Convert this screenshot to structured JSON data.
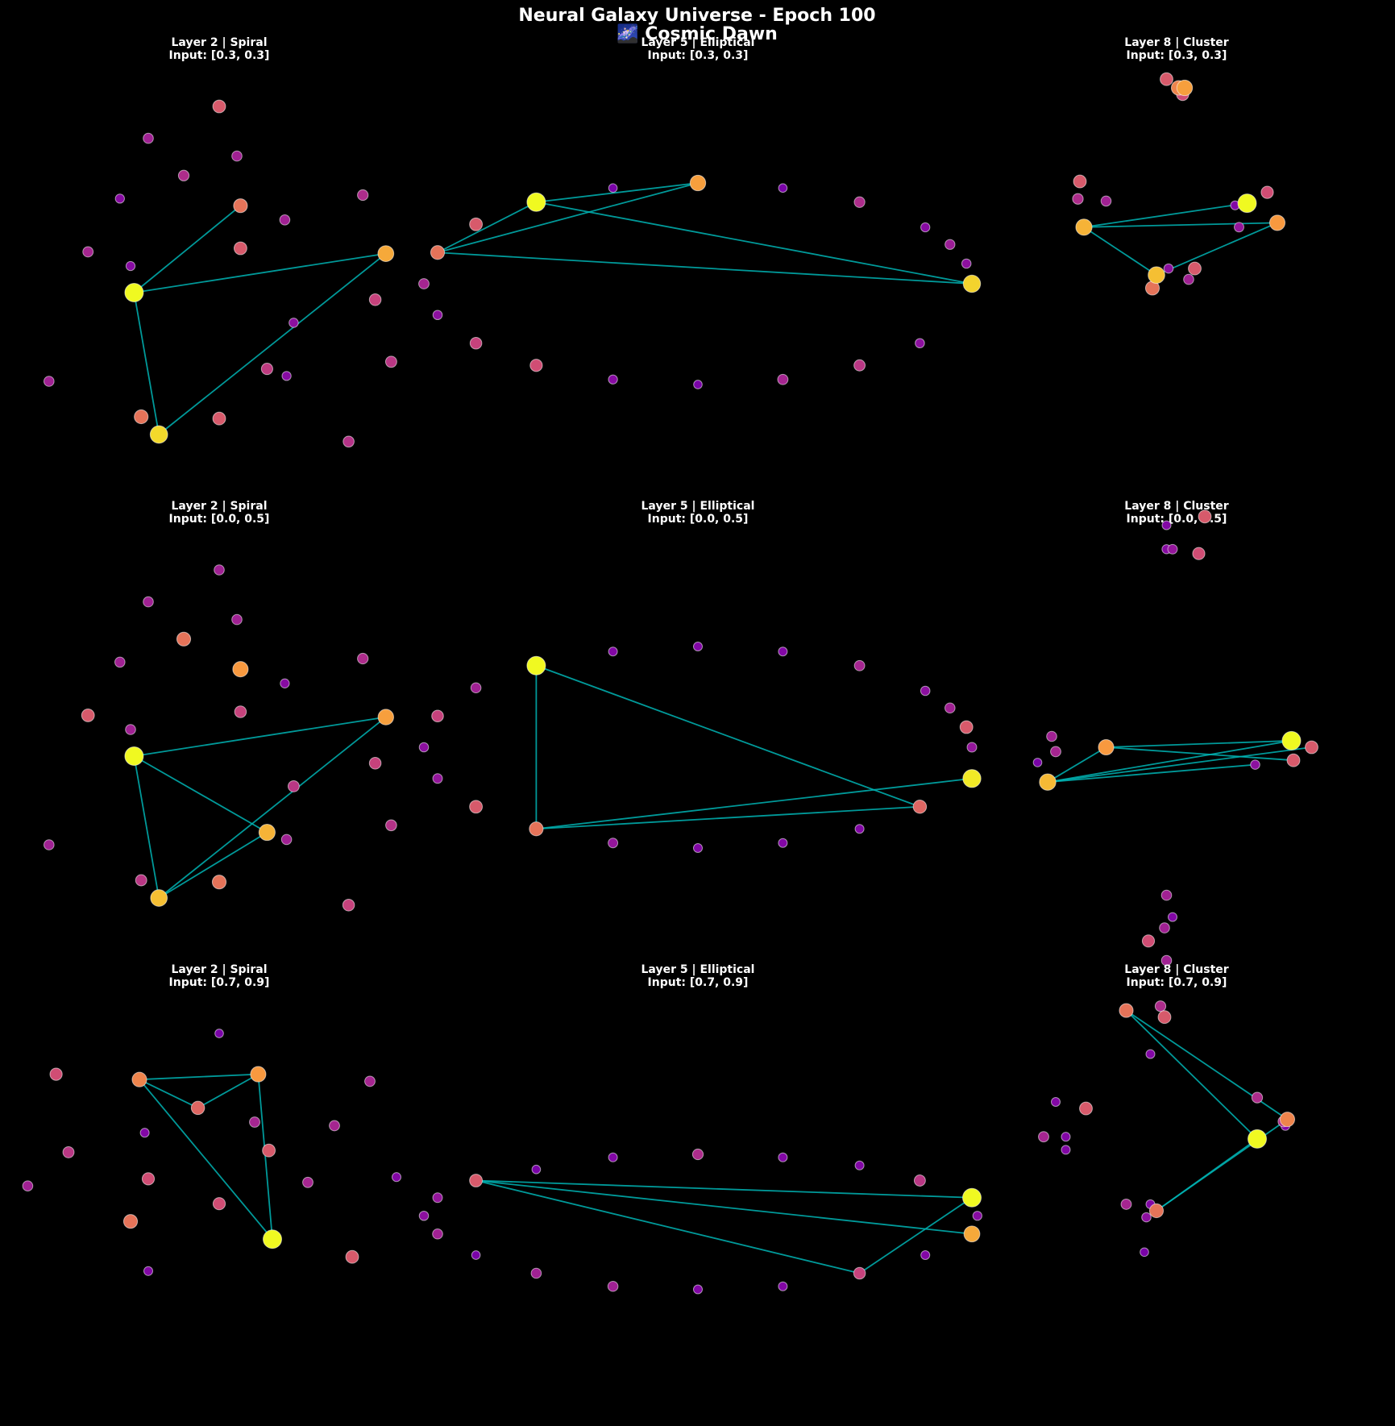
{
  "figure": {
    "title_line1": "Neural Galaxy Universe - Epoch 100",
    "title_line2": "🌌 Cosmic Dawn",
    "background": "#000000",
    "edge_color": "#00b4b4"
  },
  "chart_data": [
    {
      "type": "scatter",
      "title_line1": "Layer 2 | Spiral",
      "title_line2": "Input: [0.3, 0.3]",
      "nodes": [
        {
          "x": 0.0,
          "y": 1.0,
          "a": 0.45
        },
        {
          "x": -0.4,
          "y": 0.82,
          "a": 0.2
        },
        {
          "x": 0.1,
          "y": 0.72,
          "a": 0.2
        },
        {
          "x": -0.2,
          "y": 0.61,
          "a": 0.25
        },
        {
          "x": 0.12,
          "y": 0.44,
          "a": 0.55
        },
        {
          "x": -0.56,
          "y": 0.48,
          "a": 0.1
        },
        {
          "x": -0.74,
          "y": 0.18,
          "a": 0.22
        },
        {
          "x": 0.37,
          "y": 0.36,
          "a": 0.2
        },
        {
          "x": -0.5,
          "y": 0.1,
          "a": 0.1
        },
        {
          "x": -0.48,
          "y": -0.05,
          "a": 1.0
        },
        {
          "x": -0.96,
          "y": -0.55,
          "a": 0.2
        },
        {
          "x": -0.44,
          "y": -0.75,
          "a": 0.55
        },
        {
          "x": 0.12,
          "y": 0.2,
          "a": 0.45
        },
        {
          "x": 0.27,
          "y": -0.48,
          "a": 0.32
        },
        {
          "x": 0.0,
          "y": -0.76,
          "a": 0.45
        },
        {
          "x": 0.42,
          "y": -0.22,
          "a": 0.12
        },
        {
          "x": -0.34,
          "y": -0.85,
          "a": 0.9
        },
        {
          "x": 0.38,
          "y": -0.52,
          "a": 0.1
        },
        {
          "x": 0.88,
          "y": -0.09,
          "a": 0.35
        },
        {
          "x": 0.81,
          "y": 0.5,
          "a": 0.25
        },
        {
          "x": 0.97,
          "y": -0.44,
          "a": 0.3
        },
        {
          "x": 0.73,
          "y": -0.89,
          "a": 0.28
        },
        {
          "x": 0.94,
          "y": 0.17,
          "a": 0.75
        }
      ],
      "edges": [
        [
          9,
          22
        ],
        [
          9,
          4
        ],
        [
          22,
          16
        ],
        [
          9,
          16
        ]
      ]
    },
    {
      "type": "scatter",
      "title_line1": "Layer 5 | Elliptical",
      "title_line2": "Input: [0.3, 0.3]",
      "nodes": [
        {
          "x": 1.0,
          "y": 0.0,
          "a": 0.88
        },
        {
          "x": 0.98,
          "y": 0.2,
          "a": 0.12
        },
        {
          "x": 0.92,
          "y": 0.39,
          "a": 0.18
        },
        {
          "x": 0.83,
          "y": 0.56,
          "a": 0.1
        },
        {
          "x": 0.59,
          "y": 0.81,
          "a": 0.25
        },
        {
          "x": 0.31,
          "y": 0.95,
          "a": 0.05
        },
        {
          "x": 0.0,
          "y": 1.0,
          "a": 0.72
        },
        {
          "x": -0.31,
          "y": 0.95,
          "a": 0.05
        },
        {
          "x": -0.59,
          "y": 0.81,
          "a": 1.0
        },
        {
          "x": -0.81,
          "y": 0.59,
          "a": 0.45
        },
        {
          "x": -0.95,
          "y": 0.31,
          "a": 0.55
        },
        {
          "x": -1.0,
          "y": 0.0,
          "a": 0.22
        },
        {
          "x": -0.95,
          "y": -0.31,
          "a": 0.12
        },
        {
          "x": -0.81,
          "y": -0.59,
          "a": 0.35
        },
        {
          "x": -0.59,
          "y": -0.81,
          "a": 0.4
        },
        {
          "x": -0.31,
          "y": -0.95,
          "a": 0.1
        },
        {
          "x": 0.0,
          "y": -1.0,
          "a": 0.05
        },
        {
          "x": 0.31,
          "y": -0.95,
          "a": 0.22
        },
        {
          "x": 0.59,
          "y": -0.81,
          "a": 0.3
        },
        {
          "x": 0.81,
          "y": -0.59,
          "a": 0.12
        }
      ],
      "edges": [
        [
          8,
          6
        ],
        [
          8,
          10
        ],
        [
          10,
          6
        ],
        [
          8,
          0
        ],
        [
          10,
          0
        ]
      ]
    },
    {
      "type": "scatter",
      "title_line1": "Layer 8 | Cluster",
      "title_line2": "Input: [0.3, 0.3]",
      "nodes": [
        {
          "x": -0.05,
          "y": 0.94,
          "a": 0.45
        },
        {
          "x": 0.04,
          "y": 0.9,
          "a": 0.72
        },
        {
          "x": 0.01,
          "y": 0.9,
          "a": 0.62
        },
        {
          "x": 0.03,
          "y": 0.87,
          "a": 0.4
        },
        {
          "x": -0.48,
          "y": 0.47,
          "a": 0.45
        },
        {
          "x": -0.49,
          "y": 0.39,
          "a": 0.25
        },
        {
          "x": -0.35,
          "y": 0.38,
          "a": 0.2
        },
        {
          "x": -0.46,
          "y": 0.26,
          "a": 0.78
        },
        {
          "x": 0.45,
          "y": 0.42,
          "a": 0.4
        },
        {
          "x": 0.35,
          "y": 0.37,
          "a": 1.0
        },
        {
          "x": 0.29,
          "y": 0.36,
          "a": 0.08
        },
        {
          "x": 0.5,
          "y": 0.28,
          "a": 0.7
        },
        {
          "x": 0.31,
          "y": 0.26,
          "a": 0.15
        },
        {
          "x": -0.1,
          "y": 0.04,
          "a": 0.82
        },
        {
          "x": -0.04,
          "y": 0.07,
          "a": 0.12
        },
        {
          "x": 0.09,
          "y": 0.07,
          "a": 0.45
        },
        {
          "x": 0.06,
          "y": 0.02,
          "a": 0.2
        },
        {
          "x": -0.12,
          "y": -0.02,
          "a": 0.55
        }
      ],
      "edges": [
        [
          7,
          9
        ],
        [
          7,
          11
        ],
        [
          7,
          13
        ],
        [
          13,
          11
        ]
      ]
    },
    {
      "type": "scatter",
      "title_line1": "Layer 2 | Spiral",
      "title_line2": "Input: [0.0, 0.5]",
      "nodes": [
        {
          "x": 0.0,
          "y": 1.0,
          "a": 0.2
        },
        {
          "x": -0.4,
          "y": 0.82,
          "a": 0.2
        },
        {
          "x": 0.1,
          "y": 0.72,
          "a": 0.2
        },
        {
          "x": -0.2,
          "y": 0.61,
          "a": 0.55
        },
        {
          "x": 0.12,
          "y": 0.44,
          "a": 0.7
        },
        {
          "x": -0.56,
          "y": 0.48,
          "a": 0.2
        },
        {
          "x": -0.74,
          "y": 0.18,
          "a": 0.45
        },
        {
          "x": 0.37,
          "y": 0.36,
          "a": 0.1
        },
        {
          "x": -0.5,
          "y": 0.1,
          "a": 0.2
        },
        {
          "x": -0.48,
          "y": -0.05,
          "a": 1.0
        },
        {
          "x": -0.96,
          "y": -0.55,
          "a": 0.2
        },
        {
          "x": -0.44,
          "y": -0.75,
          "a": 0.3
        },
        {
          "x": 0.12,
          "y": 0.2,
          "a": 0.35
        },
        {
          "x": 0.27,
          "y": -0.48,
          "a": 0.78
        },
        {
          "x": 0.0,
          "y": -0.76,
          "a": 0.55
        },
        {
          "x": 0.42,
          "y": -0.22,
          "a": 0.3
        },
        {
          "x": -0.34,
          "y": -0.85,
          "a": 0.82
        },
        {
          "x": 0.38,
          "y": -0.52,
          "a": 0.2
        },
        {
          "x": 0.88,
          "y": -0.09,
          "a": 0.35
        },
        {
          "x": 0.81,
          "y": 0.5,
          "a": 0.25
        },
        {
          "x": 0.97,
          "y": -0.44,
          "a": 0.28
        },
        {
          "x": 0.73,
          "y": -0.89,
          "a": 0.35
        },
        {
          "x": 0.94,
          "y": 0.17,
          "a": 0.72
        }
      ],
      "edges": [
        [
          9,
          22
        ],
        [
          9,
          13
        ],
        [
          22,
          16
        ],
        [
          9,
          16
        ],
        [
          16,
          13
        ]
      ]
    },
    {
      "type": "scatter",
      "title_line1": "Layer 5 | Elliptical",
      "title_line2": "Input: [0.0, 0.5]",
      "nodes": [
        {
          "x": 1.0,
          "y": 0.0,
          "a": 0.15
        },
        {
          "x": 0.98,
          "y": 0.2,
          "a": 0.45
        },
        {
          "x": 0.92,
          "y": 0.39,
          "a": 0.2
        },
        {
          "x": 0.83,
          "y": 0.56,
          "a": 0.12
        },
        {
          "x": 0.59,
          "y": 0.81,
          "a": 0.22
        },
        {
          "x": 0.31,
          "y": 0.95,
          "a": 0.08
        },
        {
          "x": 0.0,
          "y": 1.0,
          "a": 0.08
        },
        {
          "x": -0.31,
          "y": 0.95,
          "a": 0.08
        },
        {
          "x": -0.59,
          "y": 0.81,
          "a": 1.0
        },
        {
          "x": -0.81,
          "y": 0.59,
          "a": 0.2
        },
        {
          "x": -0.95,
          "y": 0.31,
          "a": 0.35
        },
        {
          "x": -1.0,
          "y": 0.0,
          "a": 0.12
        },
        {
          "x": -0.95,
          "y": -0.31,
          "a": 0.15
        },
        {
          "x": -0.81,
          "y": -0.59,
          "a": 0.45
        },
        {
          "x": -0.59,
          "y": -0.81,
          "a": 0.55
        },
        {
          "x": -0.31,
          "y": -0.95,
          "a": 0.15
        },
        {
          "x": 0.0,
          "y": -1.0,
          "a": 0.08
        },
        {
          "x": 0.31,
          "y": -0.95,
          "a": 0.08
        },
        {
          "x": 0.59,
          "y": -0.81,
          "a": 0.08
        },
        {
          "x": 0.81,
          "y": -0.59,
          "a": 0.5
        },
        {
          "x": 1.0,
          "y": -0.31,
          "a": 0.95
        }
      ],
      "edges": [
        [
          8,
          14
        ],
        [
          8,
          19
        ],
        [
          14,
          20
        ],
        [
          14,
          19
        ]
      ]
    },
    {
      "type": "scatter",
      "title_line1": "Layer 8 | Cluster",
      "title_line2": "Input: [0.0, 0.5]",
      "nodes": [
        {
          "x": -0.05,
          "y": 1.02,
          "a": 0.08
        },
        {
          "x": 0.14,
          "y": 1.06,
          "a": 0.45
        },
        {
          "x": -0.05,
          "y": 0.91,
          "a": 0.1
        },
        {
          "x": -0.02,
          "y": 0.91,
          "a": 0.15
        },
        {
          "x": 0.11,
          "y": 0.89,
          "a": 0.4
        },
        {
          "x": -0.62,
          "y": 0.05,
          "a": 0.2
        },
        {
          "x": -0.6,
          "y": -0.02,
          "a": 0.22
        },
        {
          "x": -0.69,
          "y": -0.07,
          "a": 0.05
        },
        {
          "x": -0.35,
          "y": 0.0,
          "a": 0.7
        },
        {
          "x": -0.64,
          "y": -0.16,
          "a": 0.8
        },
        {
          "x": 0.57,
          "y": 0.03,
          "a": 1.0
        },
        {
          "x": 0.67,
          "y": 0.0,
          "a": 0.45
        },
        {
          "x": 0.58,
          "y": -0.06,
          "a": 0.45
        },
        {
          "x": 0.39,
          "y": -0.08,
          "a": 0.12
        },
        {
          "x": -0.05,
          "y": -0.68,
          "a": 0.2
        },
        {
          "x": -0.02,
          "y": -0.78,
          "a": 0.08
        },
        {
          "x": -0.06,
          "y": -0.83,
          "a": 0.2
        },
        {
          "x": -0.14,
          "y": -0.89,
          "a": 0.4
        },
        {
          "x": -0.05,
          "y": -0.98,
          "a": 0.2
        }
      ],
      "edges": [
        [
          8,
          10
        ],
        [
          9,
          10
        ],
        [
          9,
          8
        ],
        [
          9,
          11
        ],
        [
          8,
          12
        ],
        [
          9,
          13
        ]
      ]
    },
    {
      "type": "scatter",
      "title_line1": "Layer 2 | Spiral",
      "title_line2": "Input: [0.7, 0.9]",
      "nodes": [
        {
          "x": 0.0,
          "y": 1.0,
          "a": 0.05
        },
        {
          "x": -0.92,
          "y": 0.77,
          "a": 0.4
        },
        {
          "x": -0.45,
          "y": 0.74,
          "a": 0.62
        },
        {
          "x": 0.22,
          "y": 0.77,
          "a": 0.7
        },
        {
          "x": 0.85,
          "y": 0.73,
          "a": 0.22
        },
        {
          "x": -0.12,
          "y": 0.58,
          "a": 0.5
        },
        {
          "x": 0.2,
          "y": 0.5,
          "a": 0.22
        },
        {
          "x": -0.42,
          "y": 0.44,
          "a": 0.08
        },
        {
          "x": 0.65,
          "y": 0.48,
          "a": 0.22
        },
        {
          "x": -0.85,
          "y": 0.33,
          "a": 0.3
        },
        {
          "x": 0.28,
          "y": 0.34,
          "a": 0.45
        },
        {
          "x": -0.4,
          "y": 0.18,
          "a": 0.4
        },
        {
          "x": 0.5,
          "y": 0.16,
          "a": 0.22
        },
        {
          "x": 1.0,
          "y": 0.19,
          "a": 0.08
        },
        {
          "x": -1.08,
          "y": 0.14,
          "a": 0.2
        },
        {
          "x": 0.0,
          "y": 0.04,
          "a": 0.4
        },
        {
          "x": -0.5,
          "y": -0.06,
          "a": 0.55
        },
        {
          "x": 0.3,
          "y": -0.16,
          "a": 1.0
        },
        {
          "x": 0.75,
          "y": -0.26,
          "a": 0.45
        },
        {
          "x": -0.4,
          "y": -0.34,
          "a": 0.08
        }
      ],
      "edges": [
        [
          2,
          3
        ],
        [
          2,
          5
        ],
        [
          5,
          3
        ],
        [
          3,
          17
        ],
        [
          2,
          17
        ]
      ]
    },
    {
      "type": "scatter",
      "title_line1": "Layer 5 | Elliptical",
      "title_line2": "Input: [0.7, 0.9]",
      "nodes": [
        {
          "x": 1.0,
          "y": 0.13,
          "a": 1.0
        },
        {
          "x": 1.02,
          "y": -0.05,
          "a": 0.1
        },
        {
          "x": 1.0,
          "y": -0.23,
          "a": 0.75
        },
        {
          "x": 0.83,
          "y": -0.44,
          "a": 0.08
        },
        {
          "x": 0.59,
          "y": -0.62,
          "a": 0.35
        },
        {
          "x": 0.31,
          "y": -0.75,
          "a": 0.08
        },
        {
          "x": 0.0,
          "y": -0.78,
          "a": 0.08
        },
        {
          "x": -0.31,
          "y": -0.75,
          "a": 0.2
        },
        {
          "x": -0.59,
          "y": -0.62,
          "a": 0.2
        },
        {
          "x": -0.81,
          "y": -0.44,
          "a": 0.05
        },
        {
          "x": -0.95,
          "y": -0.23,
          "a": 0.2
        },
        {
          "x": -1.0,
          "y": -0.05,
          "a": 0.12
        },
        {
          "x": -0.95,
          "y": 0.13,
          "a": 0.15
        },
        {
          "x": -0.81,
          "y": 0.3,
          "a": 0.45
        },
        {
          "x": -0.59,
          "y": 0.41,
          "a": 0.05
        },
        {
          "x": -0.31,
          "y": 0.53,
          "a": 0.08
        },
        {
          "x": 0.0,
          "y": 0.56,
          "a": 0.25
        },
        {
          "x": 0.31,
          "y": 0.53,
          "a": 0.08
        },
        {
          "x": 0.59,
          "y": 0.45,
          "a": 0.08
        },
        {
          "x": 0.81,
          "y": 0.3,
          "a": 0.3
        }
      ],
      "edges": [
        [
          13,
          0
        ],
        [
          13,
          2
        ],
        [
          13,
          4
        ],
        [
          4,
          0
        ]
      ]
    },
    {
      "type": "scatter",
      "title_line1": "Layer 8 | Cluster",
      "title_line2": "Input: [0.7, 0.9]",
      "nodes": [
        {
          "x": -0.25,
          "y": 0.92,
          "a": 0.55
        },
        {
          "x": -0.08,
          "y": 0.94,
          "a": 0.25
        },
        {
          "x": -0.06,
          "y": 0.89,
          "a": 0.45
        },
        {
          "x": -0.13,
          "y": 0.72,
          "a": 0.08
        },
        {
          "x": 0.4,
          "y": 0.52,
          "a": 0.25
        },
        {
          "x": -0.6,
          "y": 0.5,
          "a": 0.08
        },
        {
          "x": -0.45,
          "y": 0.47,
          "a": 0.45
        },
        {
          "x": 0.55,
          "y": 0.42,
          "a": 0.62
        },
        {
          "x": 0.53,
          "y": 0.41,
          "a": 0.25
        },
        {
          "x": 0.54,
          "y": 0.39,
          "a": 0.08
        },
        {
          "x": -0.66,
          "y": 0.34,
          "a": 0.22
        },
        {
          "x": -0.55,
          "y": 0.34,
          "a": 0.08
        },
        {
          "x": -0.55,
          "y": 0.28,
          "a": 0.08
        },
        {
          "x": 0.4,
          "y": 0.33,
          "a": 1.0
        },
        {
          "x": -0.25,
          "y": 0.03,
          "a": 0.22
        },
        {
          "x": -0.13,
          "y": 0.03,
          "a": 0.08
        },
        {
          "x": -0.15,
          "y": -0.03,
          "a": 0.12
        },
        {
          "x": -0.1,
          "y": 0.0,
          "a": 0.55
        },
        {
          "x": -0.16,
          "y": -0.19,
          "a": 0.05
        }
      ],
      "edges": [
        [
          0,
          13
        ],
        [
          0,
          7
        ],
        [
          13,
          17
        ],
        [
          7,
          17
        ]
      ]
    }
  ]
}
